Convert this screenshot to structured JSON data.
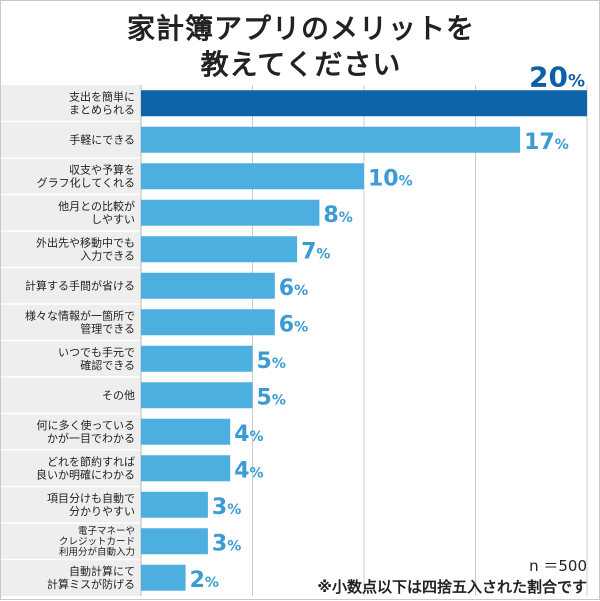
{
  "title_line1": "家計簿アプリのメリットを",
  "title_line2": "教えてください",
  "colors": {
    "bar": "#4dafe0",
    "bar_highlight": "#0f63a8",
    "value_text": "#3a9bd5",
    "value_text_highlight": "#0f5fa8",
    "label_band": "#eeeeee",
    "grid": "#cccccc"
  },
  "note_n": "n ＝500",
  "note_rounding": "※小数点以下は四捨五入された割合です",
  "percent_sign": "%",
  "chart_data": {
    "type": "bar",
    "orientation": "horizontal",
    "title": "家計簿アプリのメリットを 教えてください",
    "xlim": [
      0,
      20
    ],
    "grid": "vertical",
    "unit": "%",
    "categories": [
      [
        "支出を簡単に",
        "まとめられる"
      ],
      [
        "手軽にできる"
      ],
      [
        "収支や予算を",
        "グラフ化してくれる"
      ],
      [
        "他月との比較が",
        "しやすい"
      ],
      [
        "外出先や移動中でも",
        "入力できる"
      ],
      [
        "計算する手間が省ける"
      ],
      [
        "様々な情報が一箇所で",
        "管理できる"
      ],
      [
        "いつでも手元で",
        "確認できる"
      ],
      [
        "その他"
      ],
      [
        "何に多く使っている",
        "かが一目でわかる"
      ],
      [
        "どれを節約すれば",
        "良いか明確にわかる"
      ],
      [
        "項目分けも自動で",
        "分かりやすい"
      ],
      [
        "電子マネーや",
        "クレジットカード",
        "利用分が自動入力"
      ],
      [
        "自動計算にて",
        "計算ミスが防げる"
      ]
    ],
    "values": [
      20,
      17,
      10,
      8,
      7,
      6,
      6,
      5,
      5,
      4,
      4,
      3,
      3,
      2
    ],
    "highlight_index": 0
  }
}
